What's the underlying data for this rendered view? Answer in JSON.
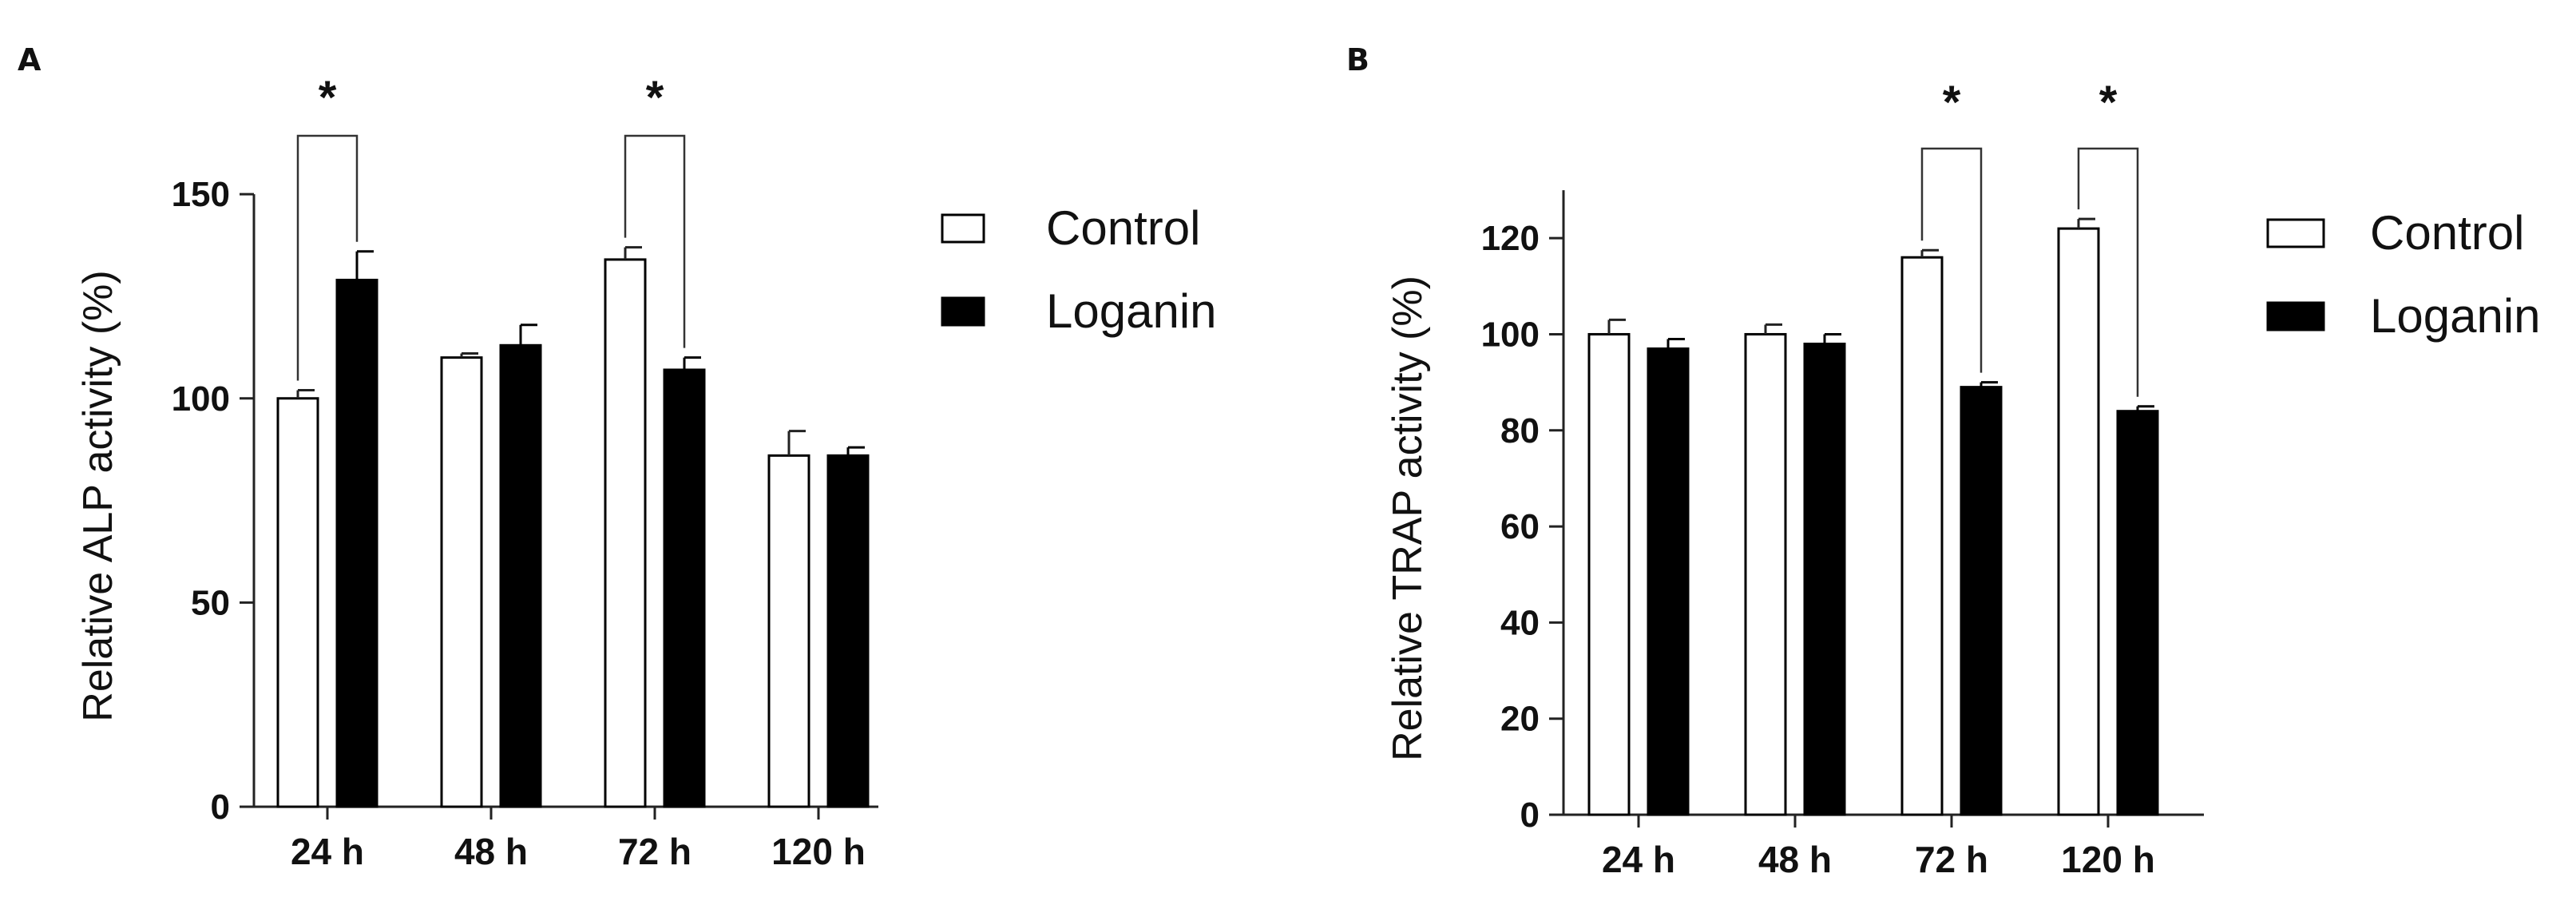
{
  "chart_data": [
    {
      "panel_label": "A",
      "type": "bar",
      "title": "",
      "xlabel": "",
      "ylabel": "Relative ALP activity (%)",
      "categories": [
        "24 h",
        "48 h",
        "72 h",
        "120 h"
      ],
      "ylim": [
        0,
        160
      ],
      "yticks": [
        0,
        50,
        100,
        150
      ],
      "grid": false,
      "legend_position": "right",
      "series": [
        {
          "name": "Control",
          "values": [
            100,
            110,
            134,
            86
          ],
          "errors": [
            2,
            1,
            3,
            6
          ],
          "fill": "#ffffff",
          "stroke": "#000000"
        },
        {
          "name": "Loganin",
          "values": [
            129,
            113,
            107,
            86
          ],
          "errors": [
            7,
            5,
            3,
            2
          ],
          "fill": "#000000",
          "stroke": "#000000"
        }
      ],
      "significance": [
        {
          "category": "24 h",
          "label": "*"
        },
        {
          "category": "72 h",
          "label": "*"
        }
      ]
    },
    {
      "panel_label": "B",
      "type": "bar",
      "title": "",
      "xlabel": "",
      "ylabel": "Relative TRAP activity (%)",
      "categories": [
        "24 h",
        "48 h",
        "72 h",
        "120 h"
      ],
      "ylim": [
        0,
        130
      ],
      "yticks": [
        0,
        20,
        40,
        60,
        80,
        100,
        120
      ],
      "grid": false,
      "legend_position": "right",
      "series": [
        {
          "name": "Control",
          "values": [
            100,
            100,
            116,
            122
          ],
          "errors": [
            3,
            2,
            1.5,
            2
          ],
          "fill": "#ffffff",
          "stroke": "#000000"
        },
        {
          "name": "Loganin",
          "values": [
            97,
            98,
            89,
            84
          ],
          "errors": [
            2,
            2,
            1,
            1
          ],
          "fill": "#000000",
          "stroke": "#000000"
        }
      ],
      "significance": [
        {
          "category": "72 h",
          "label": "*"
        },
        {
          "category": "120 h",
          "label": "*"
        }
      ]
    }
  ]
}
